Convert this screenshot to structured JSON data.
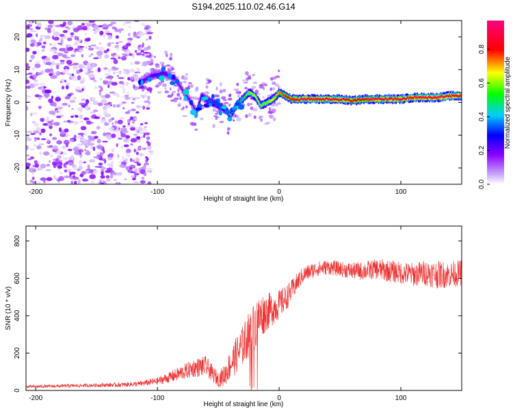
{
  "figure_title": "S194.2025.110.02.46.G14",
  "chart_data": [
    {
      "type": "heatmap",
      "title": "",
      "xlabel": "Height of straight line (km)",
      "ylabel": "Frequency (Hz)",
      "xlim": [
        -208,
        150
      ],
      "ylim": [
        -25,
        25
      ],
      "xticks": [
        -200,
        -100,
        0,
        100
      ],
      "yticks": [
        -20,
        -10,
        0,
        10,
        20
      ],
      "colorbar": {
        "label": "Normalized spectral amplitude",
        "range": [
          0,
          0.97
        ],
        "ticks": [
          0.0,
          0.2,
          0.4,
          0.6,
          0.8
        ],
        "colormap": "rainbow (violet→blue→cyan→green→yellow→red→magenta)",
        "colors": [
          "#ffffff",
          "#d9b8ff",
          "#8b00ff",
          "#0000ff",
          "#00ccff",
          "#00ff00",
          "#ffff00",
          "#ff0000",
          "#ff007f"
        ]
      },
      "ridge": {
        "description": "Peak frequency track versus height",
        "x": [
          -115,
          -105,
          -95,
          -85,
          -78,
          -72,
          -68,
          -64,
          -60,
          -55,
          -50,
          -45,
          -40,
          -35,
          -30,
          -25,
          -20,
          -15,
          -10,
          -5,
          0,
          5,
          10,
          20,
          30,
          40,
          50,
          60,
          70,
          80,
          90,
          100,
          110,
          120,
          130,
          140,
          150
        ],
        "y": [
          6,
          8,
          9,
          7,
          3,
          0,
          -3,
          2,
          1,
          0,
          -1,
          -2,
          -4,
          -1,
          1,
          3,
          2,
          -1,
          0,
          1,
          3,
          2,
          1,
          1,
          1,
          1,
          1,
          0.5,
          1,
          1,
          1,
          1,
          1.5,
          1.5,
          1.5,
          2,
          2
        ],
        "amplitude": [
          0.2,
          0.25,
          0.25,
          0.2,
          0.2,
          0.2,
          0.2,
          0.3,
          0.35,
          0.35,
          0.35,
          0.4,
          0.45,
          0.5,
          0.55,
          0.6,
          0.65,
          0.6,
          0.6,
          0.7,
          0.75,
          0.8,
          0.85,
          0.9,
          0.9,
          0.9,
          0.9,
          0.85,
          0.85,
          0.9,
          0.9,
          0.9,
          0.9,
          0.92,
          0.92,
          0.92,
          0.9
        ]
      },
      "noise_region": {
        "description": "Scattered low-amplitude speckle for heights below about -100 km",
        "x_range": [
          -208,
          -105
        ],
        "amplitude_range": [
          0.02,
          0.2
        ]
      }
    },
    {
      "type": "line",
      "title": "",
      "xlabel": "Height of straight line (km)",
      "ylabel": "SNR (10 * v/v)",
      "xlim": [
        -208,
        150
      ],
      "ylim": [
        0,
        880
      ],
      "xticks": [
        -200,
        -100,
        0,
        100
      ],
      "yticks": [
        0,
        200,
        400,
        600,
        800
      ],
      "grid": false,
      "series": [
        {
          "color": "#ee3333",
          "x": [
            -208,
            -190,
            -170,
            -150,
            -130,
            -115,
            -100,
            -90,
            -80,
            -70,
            -60,
            -55,
            -50,
            -45,
            -40,
            -35,
            -30,
            -25,
            -20,
            -15,
            -10,
            -5,
            0,
            5,
            10,
            15,
            20,
            30,
            40,
            50,
            60,
            70,
            80,
            90,
            100,
            110,
            120,
            130,
            140,
            150
          ],
          "values": [
            20,
            22,
            25,
            28,
            30,
            35,
            50,
            70,
            95,
            120,
            130,
            90,
            60,
            80,
            140,
            190,
            240,
            300,
            350,
            400,
            420,
            440,
            460,
            490,
            530,
            580,
            620,
            650,
            660,
            650,
            640,
            640,
            650,
            640,
            630,
            620,
            630,
            620,
            620,
            630
          ],
          "spread": [
            8,
            8,
            9,
            10,
            12,
            14,
            20,
            30,
            40,
            50,
            55,
            45,
            40,
            60,
            80,
            100,
            110,
            120,
            130,
            120,
            100,
            90,
            80,
            70,
            60,
            50,
            45,
            40,
            40,
            40,
            45,
            50,
            55,
            60,
            60,
            65,
            70,
            75,
            70,
            70
          ]
        }
      ]
    }
  ]
}
